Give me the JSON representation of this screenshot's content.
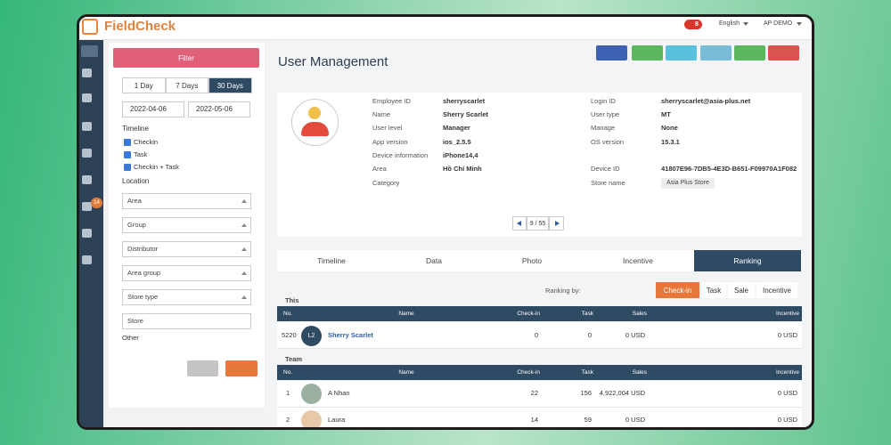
{
  "header": {
    "logo": "FieldCheck",
    "notifications": "8",
    "language": "English",
    "account": "AP DEMO"
  },
  "sidebar": {
    "badge": "14"
  },
  "filter": {
    "button": "Filter",
    "ranges": [
      "1 Day",
      "7 Days",
      "30 Days"
    ],
    "date_from": "2022-04-06",
    "date_to": "2022-05-06",
    "timeline_label": "Timeline",
    "timeline_options": [
      "Checkin",
      "Task",
      "Checkin + Task"
    ],
    "location_label": "Location",
    "selects": [
      "Area",
      "Group",
      "Distributor",
      "Area group",
      "Store type"
    ],
    "store": "Store",
    "other": "Other"
  },
  "page": {
    "title": "User Management"
  },
  "profile": {
    "left": [
      [
        "Employee ID",
        "sherryscarlet"
      ],
      [
        "Name",
        "Sherry Scarlet"
      ],
      [
        "User level",
        "Manager"
      ],
      [
        "App version",
        "ios_2.5.5"
      ],
      [
        "Device information",
        "iPhone14,4"
      ],
      [
        "Area",
        "Hồ Chí Minh"
      ],
      [
        "Category"
      ]
    ],
    "right": [
      [
        "Login ID",
        "sherryscarlet@asia-plus.net"
      ],
      [
        "User type",
        "MT"
      ],
      [
        "Manage",
        "None"
      ],
      [
        "OS version",
        "15.3.1"
      ],
      [
        "Device ID",
        "41807E96-7DB5-4E3D-B651-F09970A1F082"
      ],
      [
        "Store name",
        "Asia Plus Store"
      ]
    ],
    "pager": "9 / 55"
  },
  "tabs": [
    "Timeline",
    "Data",
    "Photo",
    "Incentive",
    "Ranking"
  ],
  "ranking": {
    "label": "Ranking by:",
    "options": [
      "Check-in",
      "Task",
      "Sale",
      "Incentive"
    ],
    "this_label": "This",
    "team_label": "Team",
    "columns": [
      "No.",
      "Name",
      "Check-in",
      "Task",
      "Sales",
      "Incentive"
    ],
    "this_row": {
      "no": "5220",
      "initials": "L2",
      "name": "Sherry Scarlet",
      "checkin": "0",
      "task": "0",
      "sales": "0 USD",
      "incentive": "0 USD"
    },
    "team_rows": [
      {
        "no": "1",
        "name": "A Nhan",
        "checkin": "22",
        "task": "156",
        "sales": "4,922,004 USD",
        "incentive": "0 USD"
      },
      {
        "no": "2",
        "name": "Laura",
        "checkin": "14",
        "task": "59",
        "sales": "0 USD",
        "incentive": "0 USD"
      }
    ]
  }
}
